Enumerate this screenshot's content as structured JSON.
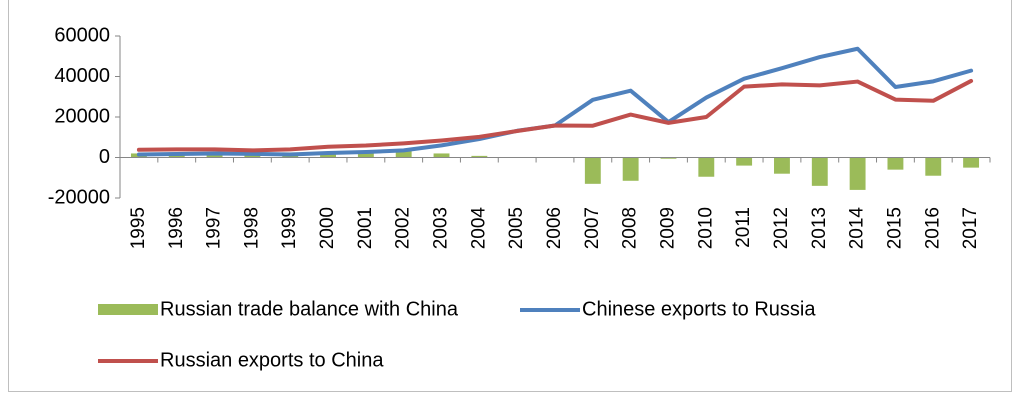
{
  "chart_data": {
    "type": "bar+line",
    "title": "",
    "xlabel": "",
    "ylabel": "",
    "categories": [
      "1995",
      "1996",
      "1997",
      "1998",
      "1999",
      "2000",
      "2001",
      "2002",
      "2003",
      "2004",
      "2005",
      "2006",
      "2007",
      "2008",
      "2009",
      "2010",
      "2011",
      "2012",
      "2013",
      "2014",
      "2015",
      "2016",
      "2017"
    ],
    "ylim": [
      -20000,
      60000
    ],
    "yticks": [
      "60000",
      "40000",
      "20000",
      "0",
      "-20000"
    ],
    "ytick_values": [
      60000,
      40000,
      20000,
      0,
      -20000
    ],
    "grid": false,
    "legend_position": "bottom",
    "series": [
      {
        "name": "Russian trade balance with China",
        "kind": "bar",
        "color": "#9bbb59",
        "values": [
          2000,
          2500,
          2500,
          1500,
          2500,
          2500,
          2500,
          3500,
          2000,
          800,
          -100,
          -200,
          -13000,
          -11500,
          -600,
          -9500,
          -4000,
          -8000,
          -14000,
          -16000,
          -6000,
          -9000,
          -5000
        ]
      },
      {
        "name": "Chinese exports to Russia",
        "kind": "line",
        "color": "#4f81bd",
        "values": [
          1500,
          1700,
          2000,
          1800,
          1500,
          2200,
          2700,
          3500,
          6000,
          9100,
          13200,
          15800,
          28500,
          33000,
          17500,
          29600,
          38900,
          44100,
          49600,
          53700,
          34800,
          37600,
          42900
        ]
      },
      {
        "name": "Russian exports to China",
        "kind": "line",
        "color": "#c0504d",
        "values": [
          3800,
          4000,
          4000,
          3500,
          4000,
          5300,
          5900,
          7000,
          8400,
          10200,
          13100,
          15800,
          15700,
          21200,
          17100,
          20000,
          35000,
          36100,
          35600,
          37500,
          28600,
          28000,
          37800
        ]
      }
    ]
  }
}
